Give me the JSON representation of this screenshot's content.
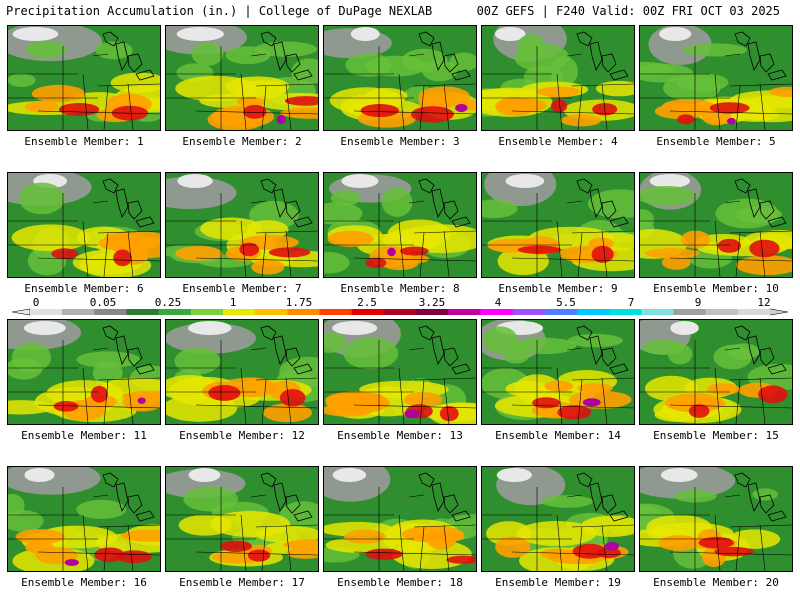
{
  "header": {
    "left": "Precipitation Accumulation (in.) | College of DuPage NEXLAB",
    "right": "00Z GEFS | F240 Valid: 00Z FRI OCT 03 2025"
  },
  "members": [
    "Ensemble Member: 1",
    "Ensemble Member: 2",
    "Ensemble Member: 3",
    "Ensemble Member: 4",
    "Ensemble Member: 5",
    "Ensemble Member: 6",
    "Ensemble Member: 7",
    "Ensemble Member: 8",
    "Ensemble Member: 9",
    "Ensemble Member: 10",
    "Ensemble Member: 11",
    "Ensemble Member: 12",
    "Ensemble Member: 13",
    "Ensemble Member: 14",
    "Ensemble Member: 15",
    "Ensemble Member: 16",
    "Ensemble Member: 17",
    "Ensemble Member: 18",
    "Ensemble Member: 19",
    "Ensemble Member: 20"
  ],
  "color_scale": {
    "ticks": [
      "0",
      "0.05",
      "0.25",
      "1",
      "1.75",
      "2.5",
      "3.25",
      "4",
      "5.5",
      "7",
      "9",
      "12"
    ],
    "colors": [
      "#e0e0e0",
      "#b0b0b0",
      "#888888",
      "#2e7d2e",
      "#3aa83a",
      "#7fd040",
      "#e8e800",
      "#ffc000",
      "#ff8c00",
      "#ff4000",
      "#e00000",
      "#b00020",
      "#800040",
      "#c000a0",
      "#ff00ff",
      "#a050ff",
      "#5080ff",
      "#00c8ff",
      "#00e0e0",
      "#80e0e0",
      "#a0a0a0",
      "#c0c0c0",
      "#d8d8d8"
    ]
  }
}
